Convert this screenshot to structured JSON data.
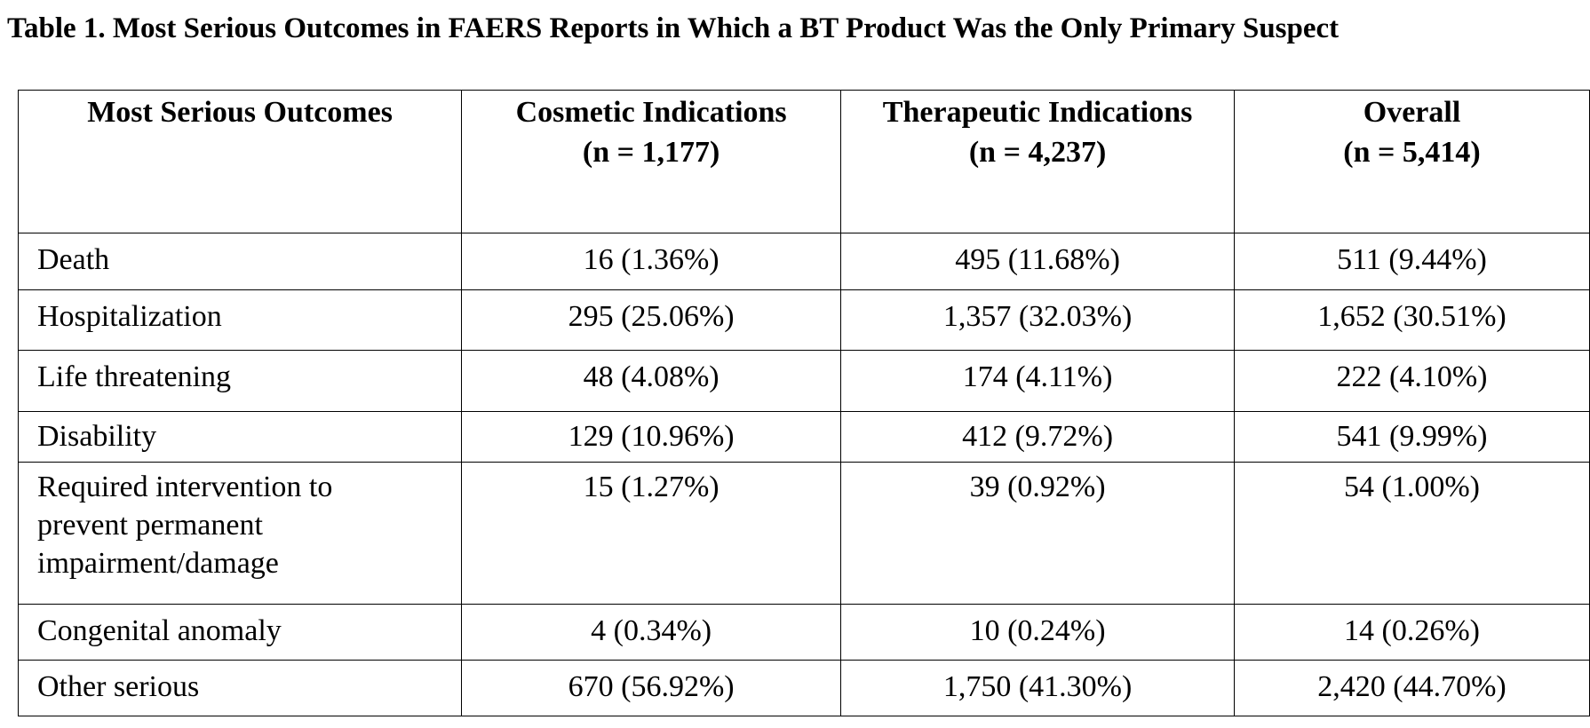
{
  "title": "Table 1. Most Serious Outcomes in FAERS Reports in Which a BT Product Was the Only Primary Suspect",
  "columns": [
    {
      "line1": "Most Serious Outcomes",
      "line2": ""
    },
    {
      "line1": "Cosmetic Indications",
      "line2": "(n = 1,177)"
    },
    {
      "line1": "Therapeutic Indications",
      "line2": "(n = 4,237)"
    },
    {
      "line1": "Overall",
      "line2": "(n = 5,414)"
    }
  ],
  "rows": [
    {
      "outcome": "Death",
      "cosmetic": "16 (1.36%)",
      "therapeutic": "495 (11.68%)",
      "overall": "511 (9.44%)"
    },
    {
      "outcome": "Hospitalization",
      "cosmetic": "295 (25.06%)",
      "therapeutic": "1,357 (32.03%)",
      "overall": "1,652 (30.51%)"
    },
    {
      "outcome": "Life threatening",
      "cosmetic": "48 (4.08%)",
      "therapeutic": "174 (4.11%)",
      "overall": "222 (4.10%)"
    },
    {
      "outcome": "Disability",
      "cosmetic": "129 (10.96%)",
      "therapeutic": "412 (9.72%)",
      "overall": "541 (9.99%)"
    },
    {
      "outcome_lines": [
        "Required intervention to",
        "prevent permanent",
        "impairment/damage"
      ],
      "cosmetic": "15 (1.27%)",
      "therapeutic": "39 (0.92%)",
      "overall": "54 (1.00%)"
    },
    {
      "outcome": "Congenital anomaly",
      "cosmetic": "4 (0.34%)",
      "therapeutic": "10 (0.24%)",
      "overall": "14 (0.26%)"
    },
    {
      "outcome": "Other serious",
      "cosmetic": "670 (56.92%)",
      "therapeutic": "1,750 (41.30%)",
      "overall": "2,420 (44.70%)"
    }
  ]
}
